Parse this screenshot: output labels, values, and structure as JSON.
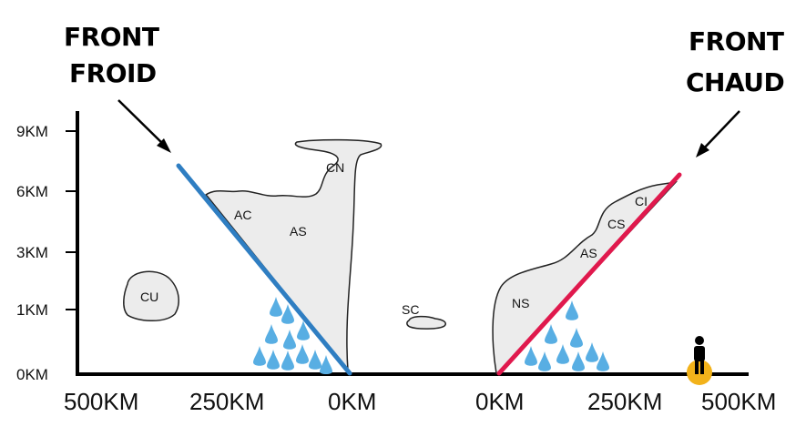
{
  "front_froid": {
    "line1": "FRONT",
    "line2": "FROID",
    "color": "#2f7ec2"
  },
  "front_chaud": {
    "line1": "FRONT",
    "line2": "CHAUD",
    "color": "#e0194d"
  },
  "y_axis": {
    "ticks": [
      "9KM",
      "6KM",
      "3KM",
      "1KM",
      "0KM"
    ]
  },
  "x_axis": {
    "ticks": [
      "500KM",
      "250KM",
      "0KM",
      "0KM",
      "250KM",
      "500KM"
    ]
  },
  "clouds": {
    "cu": "CU",
    "ac": "AC",
    "as_cold": "AS",
    "cn": "CN",
    "sc": "SC",
    "ns": "NS",
    "as_warm": "AS",
    "cs": "CS",
    "ci": "CI"
  },
  "colors": {
    "rain": "#58aee3",
    "sun": "#f2b21a",
    "cloud_fill": "#ececec"
  },
  "icons": {
    "person": "person-icon",
    "sun": "sun-icon",
    "rain": "raindrop-icon"
  }
}
